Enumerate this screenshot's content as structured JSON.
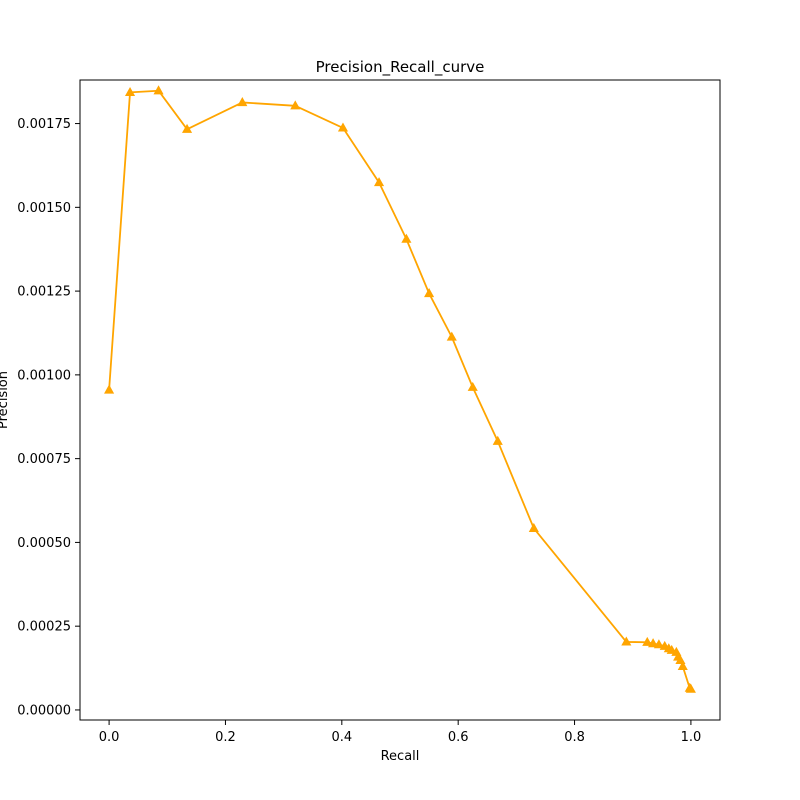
{
  "chart_data": {
    "type": "line",
    "title": "Precision_Recall_curve",
    "xlabel": "Recall",
    "ylabel": "Precision",
    "xlim": [
      -0.05,
      1.05
    ],
    "ylim": [
      -3e-05,
      0.00188
    ],
    "xticks": [
      0.0,
      0.2,
      0.4,
      0.6,
      0.8,
      1.0
    ],
    "xtick_labels": [
      "0.0",
      "0.2",
      "0.4",
      "0.6",
      "0.8",
      "1.0"
    ],
    "yticks": [
      0.0,
      0.00025,
      0.0005,
      0.00075,
      0.001,
      0.00125,
      0.0015,
      0.00175
    ],
    "ytick_labels": [
      "0.00000",
      "0.00025",
      "0.00050",
      "0.00075",
      "0.00100",
      "0.00125",
      "0.00150",
      "0.00175"
    ],
    "grid": false,
    "series": [
      {
        "color": "#ffa500",
        "marker": "triangle-up",
        "points": [
          [
            0.0,
            0.000955
          ],
          [
            0.036,
            0.001843
          ],
          [
            0.085,
            0.001848
          ],
          [
            0.134,
            0.001733
          ],
          [
            0.229,
            0.001813
          ],
          [
            0.32,
            0.001803
          ],
          [
            0.402,
            0.001737
          ],
          [
            0.464,
            0.001574
          ],
          [
            0.511,
            0.001405
          ],
          [
            0.55,
            0.001243
          ],
          [
            0.589,
            0.001113
          ],
          [
            0.625,
            0.000963
          ],
          [
            0.668,
            0.000802
          ],
          [
            0.73,
            0.000542
          ],
          [
            0.889,
            0.000203
          ],
          [
            0.925,
            0.000202
          ],
          [
            0.935,
            0.000198
          ],
          [
            0.945,
            0.000195
          ],
          [
            0.955,
            0.00019
          ],
          [
            0.962,
            0.000183
          ],
          [
            0.967,
            0.000178
          ],
          [
            0.975,
            0.000172
          ],
          [
            0.978,
            0.000158
          ],
          [
            0.982,
            0.000148
          ],
          [
            0.986,
            0.00013
          ],
          [
            0.998,
            6.5e-05
          ],
          [
            1.0,
            6.2e-05
          ]
        ]
      }
    ]
  }
}
